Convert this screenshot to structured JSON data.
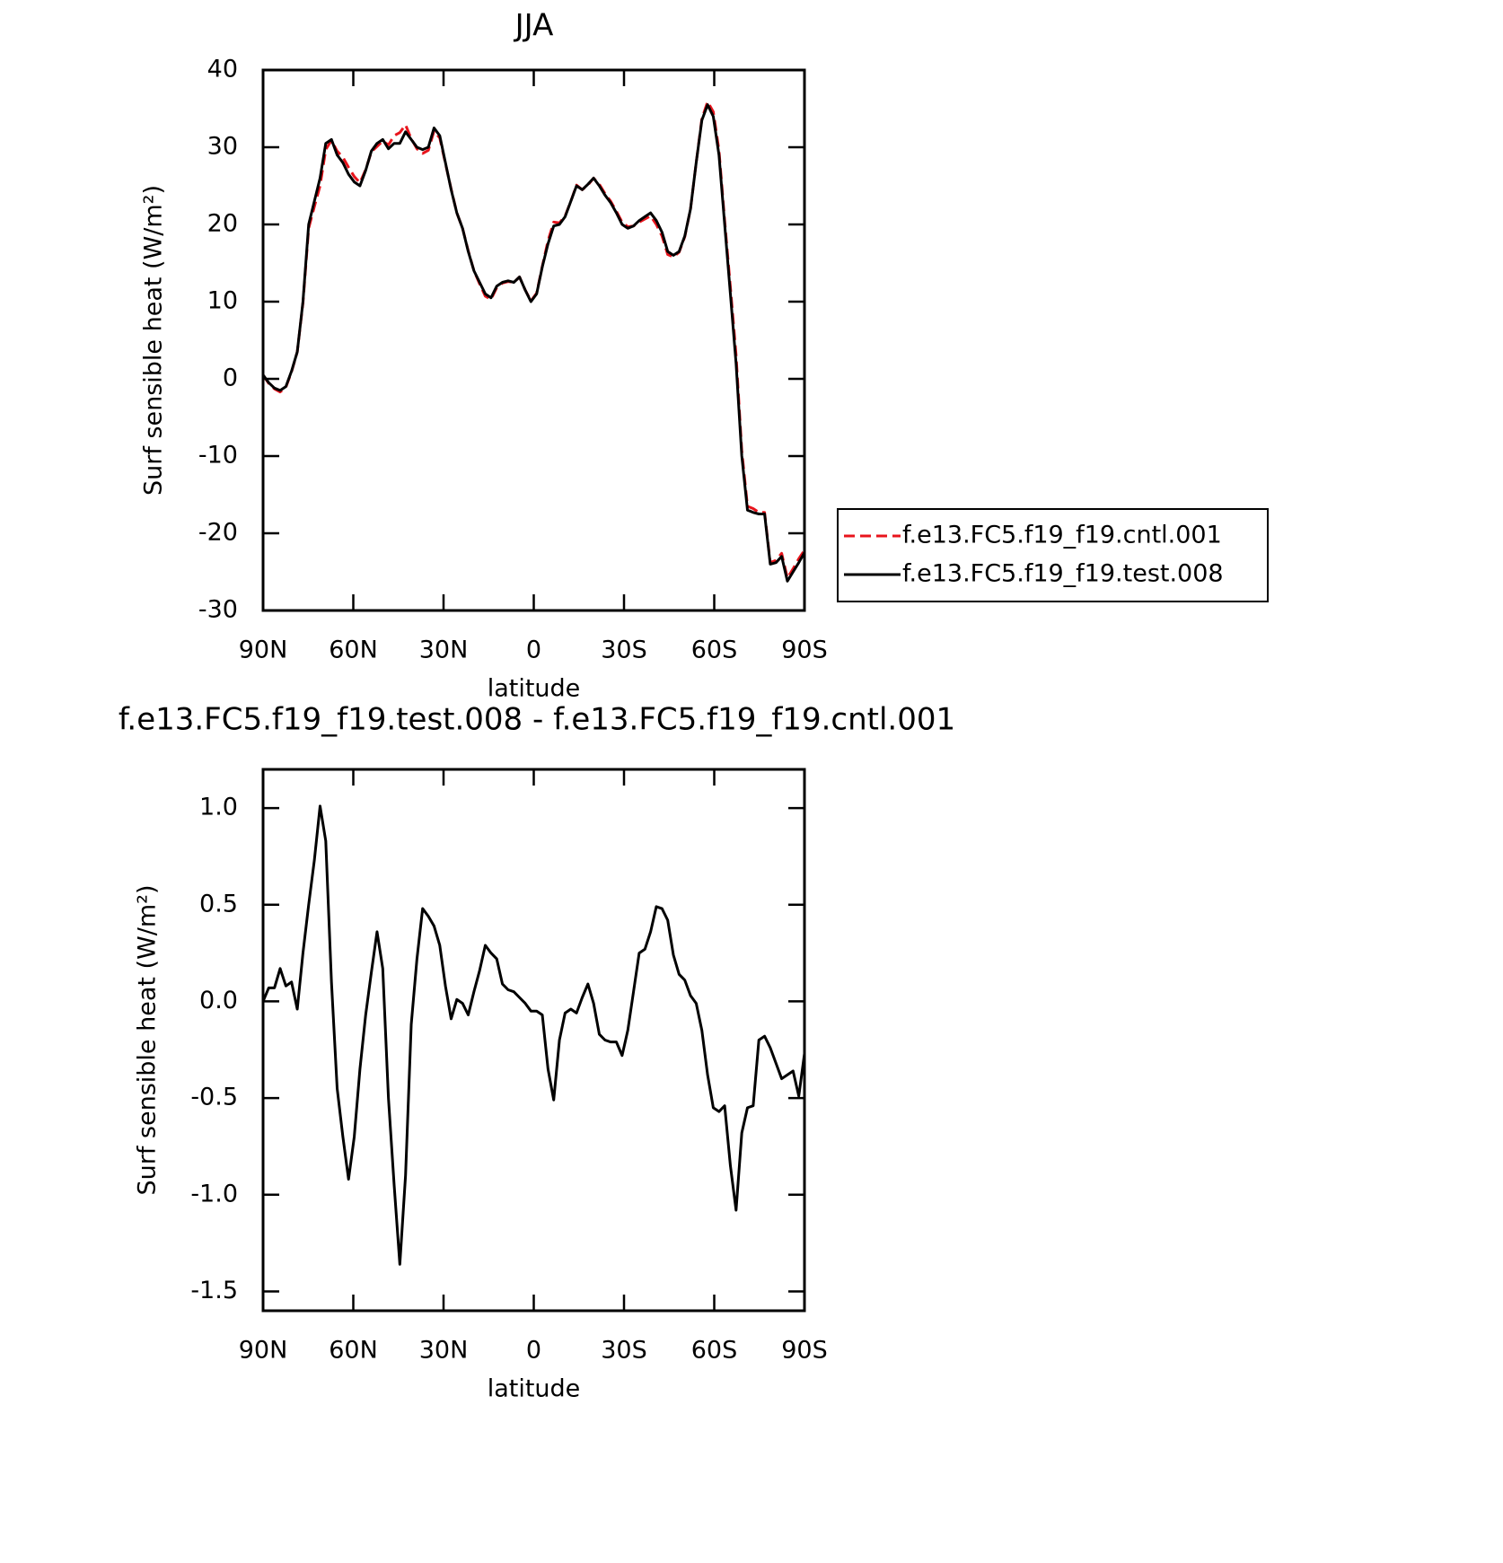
{
  "chart_data": [
    {
      "type": "line",
      "title": "JJA",
      "xlabel": "latitude",
      "ylabel": "Surf sensible heat (W/m²)",
      "legend": "right",
      "x": [
        90,
        88.11,
        86.21,
        84.32,
        82.42,
        80.53,
        78.63,
        76.74,
        74.84,
        72.95,
        71.05,
        69.16,
        67.26,
        65.37,
        63.47,
        61.58,
        59.68,
        57.79,
        55.89,
        54.0,
        52.11,
        50.21,
        48.32,
        46.42,
        44.53,
        42.63,
        40.74,
        38.84,
        36.95,
        35.05,
        33.16,
        31.26,
        29.37,
        27.47,
        25.58,
        23.68,
        21.79,
        19.89,
        18.0,
        16.11,
        14.21,
        12.32,
        10.42,
        8.53,
        6.63,
        4.74,
        2.84,
        0.95,
        -0.95,
        -2.84,
        -4.74,
        -6.63,
        -8.53,
        -10.42,
        -12.32,
        -14.21,
        -16.11,
        -18.0,
        -19.89,
        -21.79,
        -23.68,
        -25.58,
        -27.47,
        -29.37,
        -31.26,
        -33.16,
        -35.05,
        -36.95,
        -38.84,
        -40.74,
        -42.63,
        -44.53,
        -46.42,
        -48.32,
        -50.21,
        -52.11,
        -54.0,
        -55.89,
        -57.79,
        -59.68,
        -61.58,
        -63.47,
        -65.37,
        -67.26,
        -69.16,
        -71.05,
        -72.95,
        -74.84,
        -76.74,
        -78.63,
        -80.53,
        -82.42,
        -84.32,
        -86.21,
        -88.11,
        -90
      ],
      "series": [
        {
          "name": "f.e13.FC5.f19_f19.cntl.001",
          "color": "#e8141c",
          "line_style": "dashed",
          "values": [
            0.5,
            -0.6,
            -1.3,
            -1.7,
            -1.1,
            0.9,
            3.5,
            9.8,
            19.5,
            22.3,
            25.0,
            29.7,
            30.9,
            29.5,
            28.7,
            27.4,
            26.2,
            25.4,
            27.1,
            29.4,
            30.1,
            30.8,
            30.3,
            31.5,
            31.9,
            32.9,
            31.1,
            29.8,
            29.2,
            29.6,
            32.1,
            31.2,
            27.9,
            24.6,
            21.5,
            19.5,
            16.6,
            14.0,
            12.3,
            10.7,
            10.3,
            11.8,
            12.4,
            12.6,
            12.5,
            13.2,
            11.5,
            10.1,
            11.1,
            14.6,
            17.9,
            20.3,
            20.2,
            21.1,
            23.0,
            25.1,
            24.5,
            25.1,
            26.0,
            25.2,
            24.0,
            23.0,
            21.7,
            20.3,
            19.7,
            19.8,
            20.3,
            20.7,
            21.1,
            20.0,
            18.5,
            16.1,
            15.8,
            16.4,
            18.4,
            22.0,
            28.0,
            33.7,
            35.9,
            34.6,
            29.6,
            20.5,
            11.9,
            3.1,
            -9.3,
            -16.5,
            -16.8,
            -17.3,
            -17.3,
            -23.8,
            -23.5,
            -22.6,
            -25.8,
            -24.6,
            -23.3,
            -22.2
          ]
        },
        {
          "name": "f.e13.FC5.f19_f19.test.008",
          "color": "#000000",
          "line_style": "solid",
          "values": [
            0.5,
            -0.5,
            -1.2,
            -1.5,
            -1.0,
            1,
            3.5,
            10,
            20,
            23,
            26,
            30.5,
            31,
            29,
            28,
            26.5,
            25.5,
            25,
            27,
            29.5,
            30.5,
            31,
            29.8,
            30.5,
            30.5,
            32,
            31,
            30,
            29.7,
            30,
            32.5,
            31.5,
            28,
            24.5,
            21.5,
            19.5,
            16.5,
            14,
            12.5,
            11,
            10.5,
            12,
            12.5,
            12.7,
            12.5,
            13.2,
            11.5,
            10,
            11,
            14.5,
            17.5,
            19.8,
            20,
            21,
            23,
            25,
            24.5,
            25.2,
            26,
            25,
            23.8,
            22.8,
            21.5,
            20,
            19.5,
            19.8,
            20.5,
            21,
            21.5,
            20.5,
            19,
            16.5,
            16,
            16.5,
            18.5,
            22,
            28,
            33.5,
            35.5,
            34,
            29,
            20,
            11,
            2,
            -10,
            -17,
            -17.3,
            -17.5,
            -17.5,
            -24,
            -23.8,
            -23,
            -26.2,
            -25,
            -23.8,
            -22.5
          ]
        }
      ],
      "xlim": [
        90,
        -90
      ],
      "xticks": [
        {
          "value": 90,
          "label": "90N"
        },
        {
          "value": 60,
          "label": "60N"
        },
        {
          "value": 30,
          "label": "30N"
        },
        0,
        {
          "value": -30,
          "label": "30S"
        },
        {
          "value": -60,
          "label": "60S"
        },
        {
          "value": -90,
          "label": "90S"
        }
      ],
      "ylim": [
        -30,
        40
      ],
      "yticks": [
        40,
        30,
        20,
        10,
        0,
        -10,
        -20,
        -30
      ]
    },
    {
      "type": "line",
      "title": "f.e13.FC5.f19_f19.test.008 - f.e13.FC5.f19_f19.cntl.001",
      "xlabel": "latitude",
      "ylabel": "Surf sensible heat (W/m²)",
      "x": [
        90,
        88.11,
        86.21,
        84.32,
        82.42,
        80.53,
        78.63,
        76.74,
        74.84,
        72.95,
        71.05,
        69.16,
        67.26,
        65.37,
        63.47,
        61.58,
        59.68,
        57.79,
        55.89,
        54.0,
        52.11,
        50.21,
        48.32,
        46.42,
        44.53,
        42.63,
        40.74,
        38.84,
        36.95,
        35.05,
        33.16,
        31.26,
        29.37,
        27.47,
        25.58,
        23.68,
        21.79,
        19.89,
        18.0,
        16.11,
        14.21,
        12.32,
        10.42,
        8.53,
        6.63,
        4.74,
        2.84,
        0.95,
        -0.95,
        -2.84,
        -4.74,
        -6.63,
        -8.53,
        -10.42,
        -12.32,
        -14.21,
        -16.11,
        -18.0,
        -19.89,
        -21.79,
        -23.68,
        -25.58,
        -27.47,
        -29.37,
        -31.26,
        -33.16,
        -35.05,
        -36.95,
        -38.84,
        -40.74,
        -42.63,
        -44.53,
        -46.42,
        -48.32,
        -50.21,
        -52.11,
        -54.0,
        -55.89,
        -57.79,
        -59.68,
        -61.58,
        -63.47,
        -65.37,
        -67.26,
        -69.16,
        -71.05,
        -72.95,
        -74.84,
        -76.74,
        -78.63,
        -80.53,
        -82.42,
        -84.32,
        -86.21,
        -88.11,
        -90
      ],
      "series": [
        {
          "color": "#000000",
          "line_style": "solid",
          "values": [
            0,
            0.07,
            0.07,
            0.17,
            0.08,
            0.1,
            -0.04,
            0.25,
            0.5,
            0.73,
            1.01,
            0.83,
            0.1,
            -0.45,
            -0.7,
            -0.92,
            -0.7,
            -0.35,
            -0.07,
            0.15,
            0.36,
            0.17,
            -0.5,
            -0.95,
            -1.36,
            -0.9,
            -0.12,
            0.22,
            0.48,
            0.44,
            0.39,
            0.29,
            0.08,
            -0.09,
            0.01,
            -0.01,
            -0.07,
            0.05,
            0.16,
            0.29,
            0.25,
            0.22,
            0.09,
            0.06,
            0.05,
            0.02,
            -0.01,
            -0.05,
            -0.05,
            -0.07,
            -0.35,
            -0.51,
            -0.2,
            -0.06,
            -0.04,
            -0.06,
            0.02,
            0.09,
            -0.01,
            -0.17,
            -0.2,
            -0.21,
            -0.21,
            -0.28,
            -0.15,
            0.05,
            0.25,
            0.27,
            0.36,
            0.49,
            0.48,
            0.42,
            0.24,
            0.14,
            0.11,
            0.03,
            -0.01,
            -0.15,
            -0.38,
            -0.55,
            -0.57,
            -0.54,
            -0.85,
            -1.08,
            -0.68,
            -0.55,
            -0.54,
            -0.2,
            -0.18,
            -0.24,
            -0.32,
            -0.4,
            -0.38,
            -0.36,
            -0.49,
            -0.27
          ]
        }
      ],
      "xlim": [
        90,
        -90
      ],
      "xticks": [
        {
          "value": 90,
          "label": "90N"
        },
        {
          "value": 60,
          "label": "60N"
        },
        {
          "value": 30,
          "label": "30N"
        },
        0,
        {
          "value": -30,
          "label": "30S"
        },
        {
          "value": -60,
          "label": "60S"
        },
        {
          "value": -90,
          "label": "90S"
        }
      ],
      "ylim": [
        -1.6,
        1.2
      ],
      "yticks": [
        {
          "value": 1,
          "label": "1.0"
        },
        0.5,
        {
          "value": 0,
          "label": "0.0"
        },
        -0.5,
        {
          "value": -1,
          "label": "-1.0"
        },
        -1.5
      ]
    }
  ]
}
